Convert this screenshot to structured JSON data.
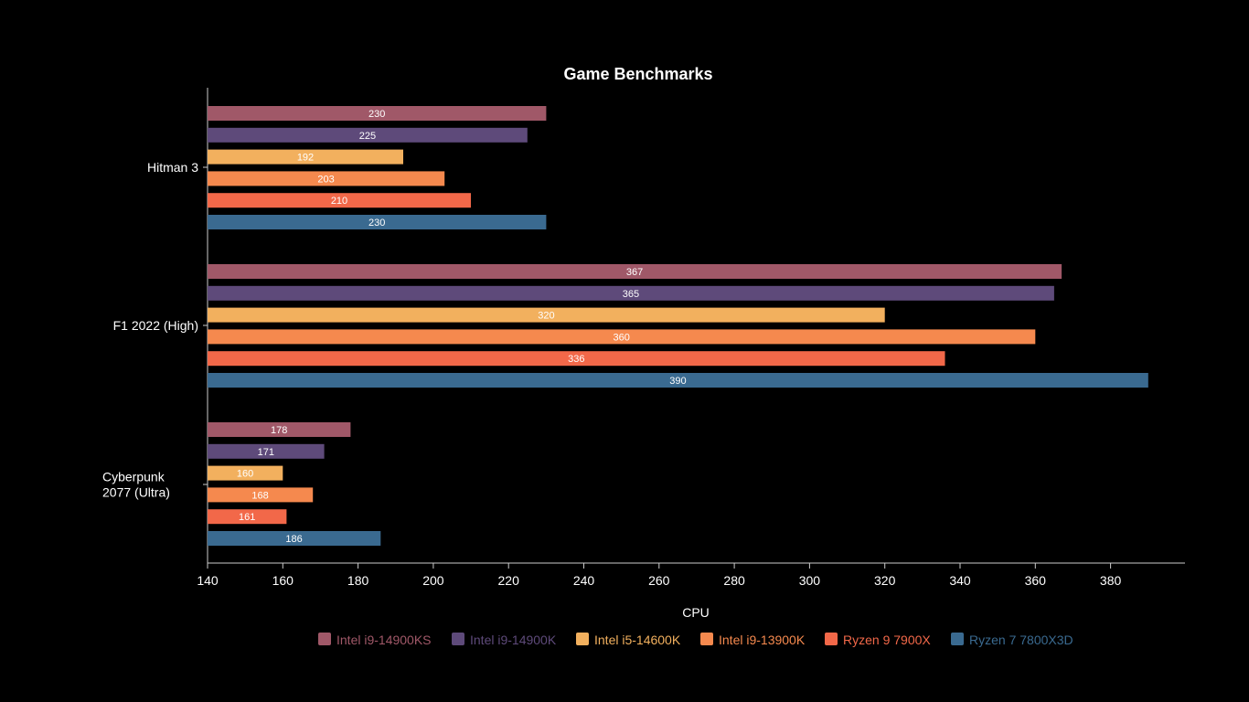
{
  "chart_data": {
    "type": "bar",
    "orientation": "horizontal",
    "title": "Game Benchmarks",
    "xlabel": "CPU",
    "ylabel": "",
    "xlim": [
      140,
      400
    ],
    "xticks": [
      140,
      160,
      180,
      200,
      220,
      240,
      260,
      280,
      300,
      320,
      340,
      360,
      380
    ],
    "grid": false,
    "legend_position": "bottom",
    "categories": [
      "Hitman 3",
      "F1 2022 (High)",
      "Cyberpunk 2077 (Ultra)"
    ],
    "category_lines": [
      [
        "Hitman 3"
      ],
      [
        "F1 2022 (High)"
      ],
      [
        "Cyberpunk",
        "2077 (Ultra)"
      ]
    ],
    "series": [
      {
        "name": "Intel i9-14900KS",
        "color": "#A05868",
        "values": [
          230,
          367,
          178
        ]
      },
      {
        "name": "Intel i9-14900K",
        "color": "#5E4A7A",
        "values": [
          225,
          365,
          171
        ]
      },
      {
        "name": "Intel i5-14600K",
        "color": "#F2B05E",
        "values": [
          192,
          320,
          160
        ]
      },
      {
        "name": "Intel i9-13900K",
        "color": "#F5894E",
        "values": [
          203,
          360,
          168
        ]
      },
      {
        "name": "Ryzen 9 7900X",
        "color": "#F26849",
        "values": [
          210,
          336,
          161
        ]
      },
      {
        "name": "Ryzen 7 7800X3D",
        "color": "#3A6A90",
        "values": [
          230,
          390,
          186
        ]
      }
    ]
  }
}
